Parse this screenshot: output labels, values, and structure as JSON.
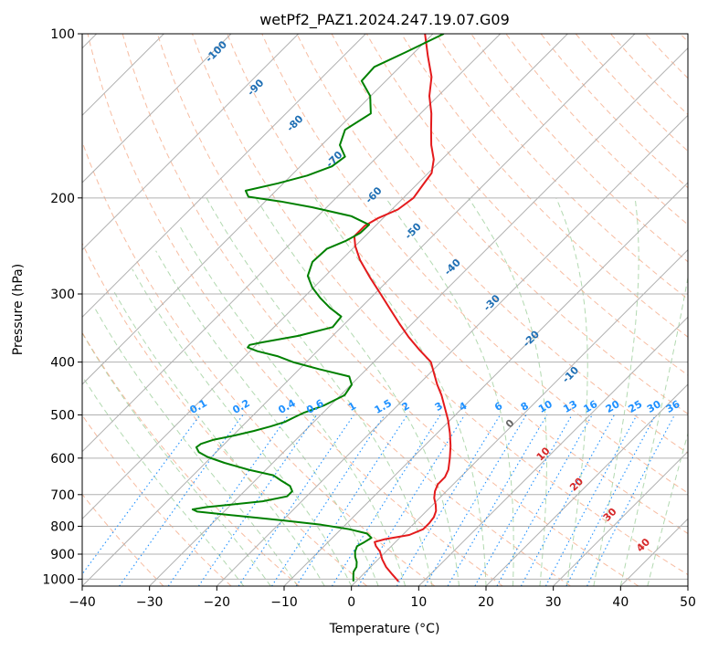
{
  "chart_data": {
    "type": "line",
    "title": "wetPf2_PAZ1.2024.247.19.07.G09",
    "xlabel": "Temperature (°C)",
    "ylabel": "Pressure (hPa)",
    "xlim": [
      -40,
      50
    ],
    "ylim": [
      1030,
      100
    ],
    "y_scale": "log",
    "skew_deg": 45,
    "x_ticks": [
      -40,
      -30,
      -20,
      -10,
      0,
      10,
      20,
      30,
      40,
      50
    ],
    "x_tick_labels": [
      "−40",
      "−30",
      "−20",
      "−10",
      "0",
      "10",
      "20",
      "30",
      "40",
      "50"
    ],
    "y_ticks": [
      1000,
      900,
      800,
      700,
      600,
      500,
      400,
      300,
      200,
      100
    ],
    "y_tick_labels": [
      "1000",
      "900",
      "800",
      "700",
      "600",
      "500",
      "400",
      "300",
      "200",
      "100"
    ],
    "grid": true,
    "colors": {
      "temperature": "#e41a1c",
      "dewpoint": "#008000",
      "isotherm": "#b0b0b0",
      "dry_adiabat": "#f4a582",
      "moist_adiabat": "#7fbf7b",
      "mixing_ratio": "#1e90ff",
      "dry_label": "#1f6fb4",
      "moist_label": "#d62728"
    },
    "series": [
      {
        "key": "temperature",
        "pressure": [
          1010,
          980,
          950,
          920,
          890,
          870,
          855,
          845,
          830,
          810,
          790,
          770,
          750,
          730,
          710,
          690,
          670,
          650,
          630,
          600,
          570,
          540,
          510,
          480,
          460,
          440,
          420,
          400,
          380,
          360,
          340,
          320,
          300,
          280,
          260,
          245,
          235,
          225,
          218,
          210,
          200,
          190,
          180,
          170,
          160,
          150,
          140,
          130,
          120,
          110,
          100
        ],
        "values": [
          6.3,
          4.3,
          2.3,
          0.6,
          -0.9,
          -2.3,
          -3.1,
          -2.0,
          1.0,
          2.2,
          2.2,
          2.0,
          1.4,
          0.4,
          -0.8,
          -1.7,
          -2.3,
          -2.3,
          -2.9,
          -4.4,
          -6.1,
          -8.1,
          -10.4,
          -13.1,
          -15.0,
          -17.2,
          -19.3,
          -21.5,
          -25.0,
          -28.5,
          -31.9,
          -35.4,
          -39.1,
          -43.1,
          -47.2,
          -50.0,
          -51.6,
          -51.6,
          -50.8,
          -49.1,
          -48.5,
          -49.0,
          -49.5,
          -51.2,
          -53.7,
          -56.0,
          -58.4,
          -61.3,
          -63.8,
          -67.4,
          -71.2
        ]
      },
      {
        "key": "dewpoint",
        "pressure": [
          1010,
          990,
          970,
          950,
          930,
          910,
          890,
          870,
          855,
          840,
          825,
          810,
          795,
          780,
          765,
          752,
          745,
          738,
          730,
          720,
          705,
          690,
          675,
          660,
          645,
          630,
          612,
          597,
          585,
          573,
          565,
          555,
          545,
          535,
          525,
          515,
          505,
          495,
          480,
          460,
          440,
          425,
          412,
          400,
          390,
          382,
          376,
          372,
          368,
          358,
          345,
          330,
          318,
          305,
          292,
          278,
          262,
          248,
          240,
          232,
          224,
          216,
          208,
          203,
          199,
          194,
          188,
          182,
          175,
          168,
          160,
          150,
          140,
          130,
          122,
          115,
          108,
          100
        ],
        "values": [
          -0.4,
          -1.1,
          -1.8,
          -2.1,
          -2.8,
          -3.8,
          -4.6,
          -5.1,
          -4.6,
          -4.2,
          -5.5,
          -8.8,
          -13.6,
          -20.2,
          -27.7,
          -34.0,
          -35.0,
          -33.3,
          -30.0,
          -25.8,
          -22.9,
          -22.9,
          -24.0,
          -26.1,
          -28.1,
          -32.6,
          -37.2,
          -40.6,
          -42.6,
          -43.7,
          -43.5,
          -42.2,
          -39.7,
          -37.6,
          -35.8,
          -34.3,
          -33.6,
          -32.8,
          -30.9,
          -29.4,
          -29.9,
          -31.5,
          -37.1,
          -42.0,
          -45.2,
          -48.9,
          -50.9,
          -51.0,
          -49.5,
          -45.1,
          -41.3,
          -41.6,
          -44.6,
          -47.5,
          -50.2,
          -52.6,
          -54.0,
          -53.8,
          -52.2,
          -51.2,
          -51.1,
          -55.0,
          -62.2,
          -67.7,
          -73.2,
          -74.5,
          -70.8,
          -67.6,
          -65.3,
          -64.8,
          -67.3,
          -68.8,
          -67.4,
          -70.1,
          -73.6,
          -73.8,
          -71.3,
          -68.4
        ]
      }
    ],
    "dry_adiabat_labels": [
      "-100",
      "-90",
      "-80",
      "-70",
      "-60",
      "-50",
      "-40",
      "-30",
      "-20",
      "-10"
    ],
    "mixing_ratio_labels": [
      "0.1",
      "0.2",
      "0.4",
      "0.6",
      "1",
      "1.5",
      "2",
      "3",
      "4",
      "6",
      "8",
      "10",
      "13",
      "16",
      "20",
      "25",
      "30",
      "36"
    ],
    "moist_adiabat_labels": [
      "0",
      "10",
      "20",
      "30",
      "40"
    ]
  }
}
